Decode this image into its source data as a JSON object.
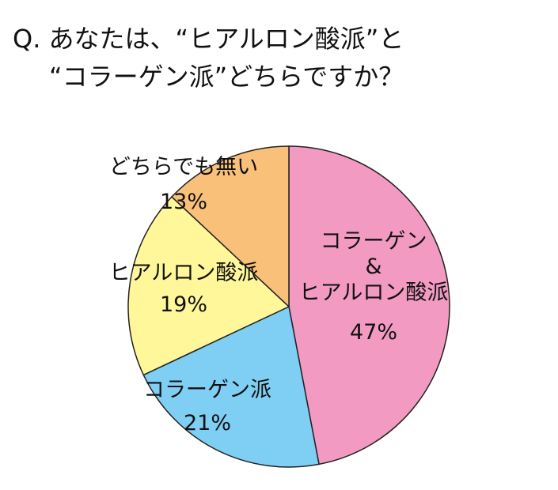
{
  "chart_data": {
    "type": "pie",
    "title": [
      "Q. あなたは、“ヒアルロン酸派”と",
      "“コラーゲン派”どちらですか？"
    ],
    "categories": [
      "コラーゲン\n&\nヒアルロン酸派",
      "コラーゲン派",
      "ヒアルロン酸派",
      "どちらでも無い"
    ],
    "values": [
      47,
      21,
      19,
      13
    ],
    "value_labels": [
      "47%",
      "21%",
      "19%",
      "13%"
    ],
    "colors": [
      "#f29ac2",
      "#7fcef4",
      "#fff799",
      "#f9c07a"
    ]
  }
}
